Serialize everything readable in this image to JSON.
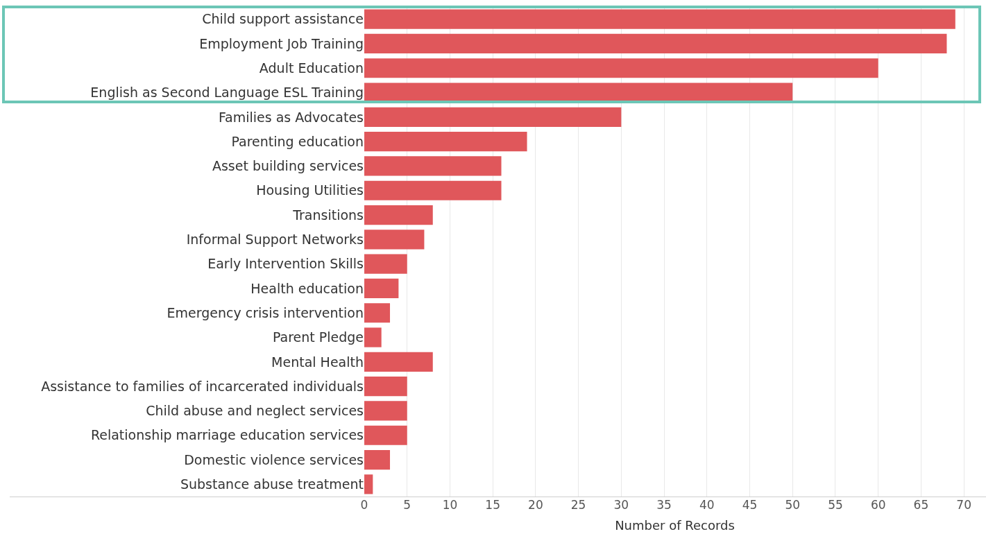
{
  "chart_data": {
    "type": "bar",
    "orientation": "horizontal",
    "xlabel": "Number of Records",
    "categories": [
      "Child support assistance",
      "Employment Job Training",
      "Adult Education",
      "English as Second Language ESL Training",
      "Families as Advocates",
      "Parenting education",
      "Asset building services",
      "Housing Utilities",
      "Transitions",
      "Informal Support Networks",
      "Early Intervention Skills",
      "Health education",
      "Emergency crisis intervention",
      "Parent Pledge",
      "Mental Health",
      "Assistance to families of incarcerated individuals",
      "Child abuse and neglect services",
      "Relationship marriage education services",
      "Domestic violence services",
      "Substance abuse treatment"
    ],
    "values": [
      69,
      68,
      60,
      50,
      30,
      19,
      16,
      16,
      8,
      7,
      5,
      4,
      3,
      2,
      8,
      5,
      5,
      5,
      3,
      1
    ],
    "color": "#e0575b",
    "xlim": [
      0,
      72.5
    ],
    "xticks": [
      0,
      5,
      10,
      15,
      20,
      25,
      30,
      35,
      40,
      45,
      50,
      55,
      60,
      65,
      70
    ],
    "grid": "x",
    "legend": false
  }
}
